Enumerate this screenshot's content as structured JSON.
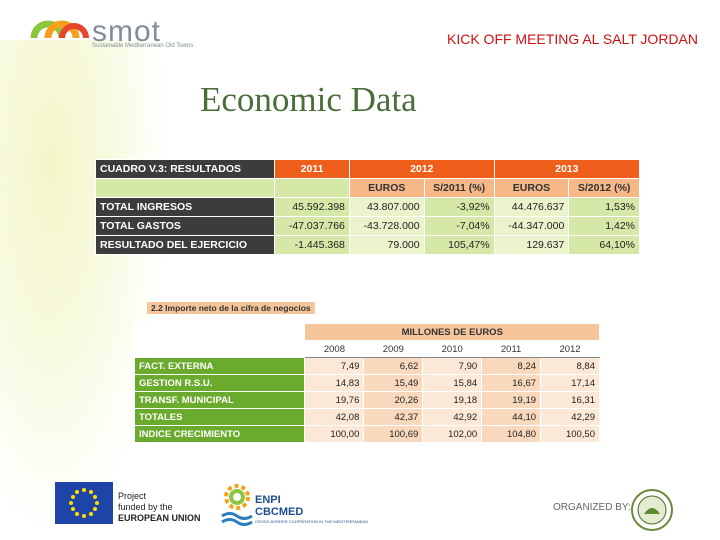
{
  "header": {
    "logo_word": "smot",
    "logo_tagline": "Sustainable Mediterranean Old Towns",
    "kickoff": "KICK OFF MEETING AL SALT JORDAN",
    "title": "Economic Data"
  },
  "table1": {
    "corner": "CUADRO V.3: RESULTADOS",
    "years": [
      "2011",
      "2012",
      "2013"
    ],
    "subheaders": [
      "EUROS",
      "S/2011 (%)",
      "EUROS",
      "S/2012 (%)"
    ],
    "rows": [
      {
        "label": "TOTAL INGRESOS",
        "v": [
          "45.592.398",
          "43.807.000",
          "-3,92%",
          "44.476.637",
          "1,53%"
        ]
      },
      {
        "label": "TOTAL GASTOS",
        "v": [
          "-47.037.766",
          "-43.728.000",
          "-7,04%",
          "-44.347.000",
          "1,42%"
        ]
      },
      {
        "label": "RESULTADO DEL EJERCICIO",
        "v": [
          "-1.445.368",
          "79.000",
          "105,47%",
          "129.637",
          "64,10%"
        ]
      }
    ]
  },
  "table2": {
    "caption": "2.2 Importe neto de la cifra de negocios",
    "unit": "MILLONES DE EUROS",
    "years": [
      "2008",
      "2009",
      "2010",
      "2011",
      "2012"
    ],
    "rows": [
      {
        "label": "FACT. EXTERNA",
        "v": [
          "7,49",
          "6,62",
          "7,90",
          "8,24",
          "8,84"
        ]
      },
      {
        "label": "GESTION R.S.U.",
        "v": [
          "14,83",
          "15,49",
          "15,84",
          "16,67",
          "17,14"
        ]
      },
      {
        "label": "TRANSF. MUNICIPAL",
        "v": [
          "19,76",
          "20,26",
          "19,18",
          "19,19",
          "16,31"
        ]
      },
      {
        "label": "TOTALES",
        "v": [
          "42,08",
          "42,37",
          "42,92",
          "44,10",
          "42,29"
        ]
      },
      {
        "label": "INDICE CRECIMIENTO",
        "v": [
          "100,00",
          "100,69",
          "102,00",
          "104,80",
          "100,50"
        ]
      }
    ]
  },
  "footer": {
    "project_l1": "Project",
    "project_l2": "funded by the",
    "project_l3a": "EUROPEAN",
    "project_l3b": "UNION",
    "enpi_l1": "ENPI",
    "enpi_l2": "CBCMED",
    "enpi_small": "CROSS-BORDER COOPERATION IN THE MEDITERRANEAN",
    "organized": "ORGANIZED BY:"
  }
}
